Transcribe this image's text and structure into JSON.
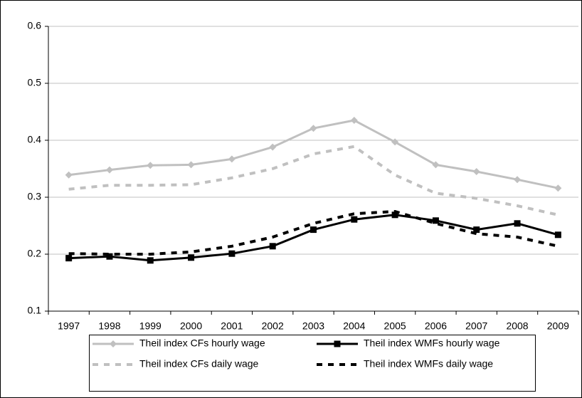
{
  "chart_data": {
    "type": "line",
    "categories": [
      "1997",
      "1998",
      "1999",
      "2000",
      "2001",
      "2002",
      "2003",
      "2004",
      "2005",
      "2006",
      "2007",
      "2008",
      "2009"
    ],
    "series": [
      {
        "name": "Theil index CFs hourly wage",
        "color": "#c0c0c0",
        "dash": false,
        "marker": "diamond",
        "values": [
          0.339,
          0.348,
          0.356,
          0.357,
          0.367,
          0.388,
          0.421,
          0.435,
          0.397,
          0.357,
          0.345,
          0.331,
          0.316
        ]
      },
      {
        "name": "Theil index WMFs hourly wage",
        "color": "#000000",
        "dash": false,
        "marker": "square",
        "values": [
          0.193,
          0.196,
          0.189,
          0.194,
          0.201,
          0.214,
          0.243,
          0.261,
          0.269,
          0.259,
          0.243,
          0.254,
          0.234
        ]
      },
      {
        "name": "Theil index CFs daily wage",
        "color": "#c0c0c0",
        "dash": true,
        "values": [
          0.314,
          0.321,
          0.321,
          0.322,
          0.334,
          0.35,
          0.376,
          0.389,
          0.339,
          0.307,
          0.298,
          0.285,
          0.269
        ]
      },
      {
        "name": "Theil index WMFs daily wage",
        "color": "#000000",
        "dash": true,
        "values": [
          0.201,
          0.2,
          0.2,
          0.204,
          0.214,
          0.23,
          0.254,
          0.271,
          0.275,
          0.254,
          0.236,
          0.23,
          0.214
        ]
      }
    ],
    "ylim": [
      0.1,
      0.6
    ],
    "yticks": [
      0.1,
      0.2,
      0.3,
      0.4,
      0.5,
      0.6
    ],
    "grid": true,
    "legend": "bottom"
  }
}
